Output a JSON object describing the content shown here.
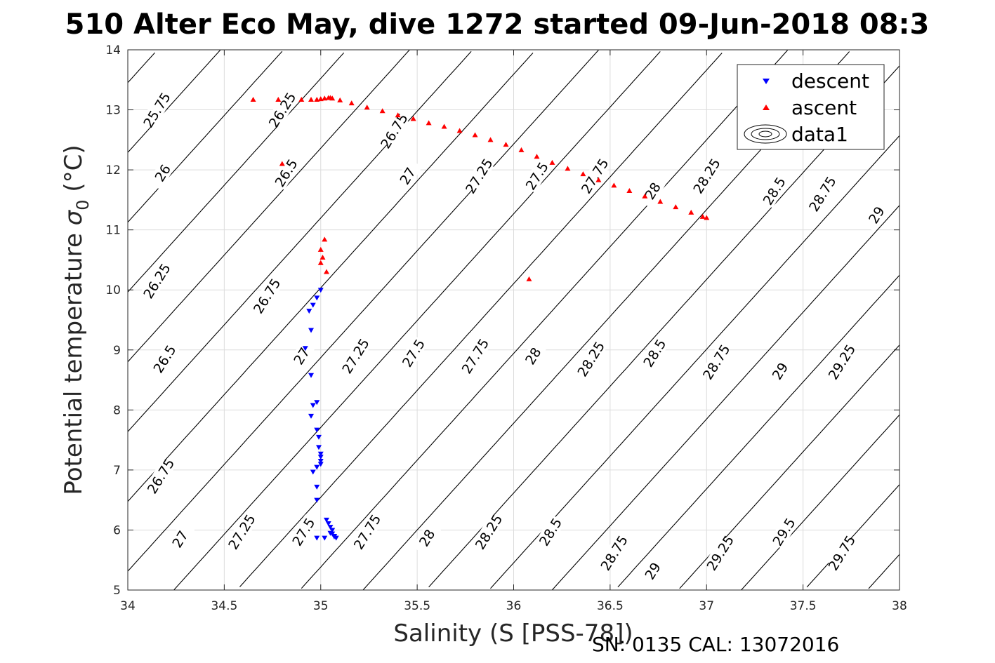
{
  "title": "510 Alter Eco May, dive 1272 started 09-Jun-2018 08:3",
  "footer": "SN: 0135  CAL: 13072016",
  "chart_data": {
    "type": "scatter",
    "title": "510 Alter Eco May, dive 1272 started 09-Jun-2018 08:3",
    "xlabel": "Salinity (S [PSS-78])",
    "ylabel_main": "Potential temperature ",
    "ylabel_sigma": "σ",
    "ylabel_sub": "0",
    "ylabel_unit": " (°C)",
    "xlim": [
      34,
      38
    ],
    "ylim": [
      5,
      14
    ],
    "xticks": [
      34,
      34.5,
      35,
      35.5,
      36,
      36.5,
      37,
      37.5,
      38
    ],
    "xtick_labels": [
      "34",
      "34.5",
      "35",
      "35.5",
      "36",
      "36.5",
      "37",
      "37.5",
      "38"
    ],
    "yticks": [
      5,
      6,
      7,
      8,
      9,
      10,
      11,
      12,
      13,
      14
    ],
    "ytick_labels": [
      "5",
      "6",
      "7",
      "8",
      "9",
      "10",
      "11",
      "12",
      "13",
      "14"
    ],
    "grid": true,
    "legend": {
      "placement": "top-right",
      "entries": [
        "descent",
        "ascent",
        "data1"
      ]
    },
    "series": [
      {
        "name": "descent",
        "marker": "triangle-down",
        "color": "#0000ff",
        "points": [
          [
            35.0,
            10.0
          ],
          [
            34.98,
            9.87
          ],
          [
            34.96,
            9.75
          ],
          [
            34.94,
            9.65
          ],
          [
            34.95,
            9.33
          ],
          [
            34.92,
            9.03
          ],
          [
            34.95,
            8.58
          ],
          [
            34.98,
            8.13
          ],
          [
            34.96,
            8.08
          ],
          [
            34.95,
            7.9
          ],
          [
            34.98,
            7.67
          ],
          [
            34.99,
            7.55
          ],
          [
            34.99,
            7.38
          ],
          [
            35.0,
            7.27
          ],
          [
            35.0,
            7.22
          ],
          [
            35.0,
            7.15
          ],
          [
            35.0,
            7.1
          ],
          [
            34.98,
            7.05
          ],
          [
            34.96,
            6.97
          ],
          [
            34.98,
            6.72
          ],
          [
            34.98,
            6.5
          ],
          [
            35.03,
            6.17
          ],
          [
            35.04,
            6.11
          ],
          [
            35.05,
            6.05
          ],
          [
            35.06,
            6.0
          ],
          [
            35.06,
            5.94
          ],
          [
            35.07,
            5.89
          ],
          [
            35.08,
            5.87
          ],
          [
            35.02,
            5.87
          ],
          [
            34.98,
            5.87
          ],
          [
            35.05,
            5.95
          ],
          [
            35.07,
            5.9
          ]
        ]
      },
      {
        "name": "ascent",
        "marker": "triangle-up",
        "color": "#ff0000",
        "points": [
          [
            34.65,
            13.17
          ],
          [
            34.78,
            13.17
          ],
          [
            34.9,
            13.17
          ],
          [
            34.95,
            13.17
          ],
          [
            34.98,
            13.17
          ],
          [
            35.0,
            13.18
          ],
          [
            35.02,
            13.19
          ],
          [
            35.04,
            13.2
          ],
          [
            35.05,
            13.2
          ],
          [
            35.06,
            13.19
          ],
          [
            35.1,
            13.16
          ],
          [
            35.16,
            13.11
          ],
          [
            35.24,
            13.04
          ],
          [
            35.32,
            12.98
          ],
          [
            35.4,
            12.91
          ],
          [
            35.48,
            12.85
          ],
          [
            35.56,
            12.78
          ],
          [
            35.64,
            12.72
          ],
          [
            35.72,
            12.65
          ],
          [
            35.8,
            12.58
          ],
          [
            35.88,
            12.5
          ],
          [
            35.96,
            12.42
          ],
          [
            36.04,
            12.33
          ],
          [
            36.12,
            12.22
          ],
          [
            36.2,
            12.12
          ],
          [
            36.28,
            12.02
          ],
          [
            36.36,
            11.93
          ],
          [
            36.44,
            11.83
          ],
          [
            36.52,
            11.74
          ],
          [
            36.6,
            11.65
          ],
          [
            36.68,
            11.56
          ],
          [
            36.76,
            11.47
          ],
          [
            36.84,
            11.38
          ],
          [
            36.92,
            11.29
          ],
          [
            36.98,
            11.22
          ],
          [
            37.0,
            11.2
          ],
          [
            34.8,
            12.1
          ],
          [
            35.02,
            10.84
          ],
          [
            35.0,
            10.67
          ],
          [
            35.01,
            10.54
          ],
          [
            35.0,
            10.45
          ],
          [
            35.03,
            10.3
          ],
          [
            36.08,
            10.18
          ]
        ]
      }
    ],
    "contour_levels": [
      25.75,
      26,
      26.25,
      26.5,
      26.75,
      27,
      27.25,
      27.5,
      27.75,
      28,
      28.25,
      28.5,
      28.75,
      29,
      29.25,
      29.5,
      29.75
    ],
    "contour_labels": [
      {
        "text": "25.75",
        "x": 34.15,
        "y": 13.0
      },
      {
        "text": "26.25",
        "x": 34.8,
        "y": 13.0
      },
      {
        "text": "26.75",
        "x": 35.38,
        "y": 12.65
      },
      {
        "text": "26",
        "x": 34.18,
        "y": 11.95
      },
      {
        "text": "26.5",
        "x": 34.82,
        "y": 11.95
      },
      {
        "text": "27",
        "x": 35.45,
        "y": 11.9
      },
      {
        "text": "27.25",
        "x": 35.82,
        "y": 11.9
      },
      {
        "text": "27.5",
        "x": 36.12,
        "y": 11.9
      },
      {
        "text": "27.75",
        "x": 36.42,
        "y": 11.9
      },
      {
        "text": "28",
        "x": 36.72,
        "y": 11.65
      },
      {
        "text": "28.25",
        "x": 37.0,
        "y": 11.9
      },
      {
        "text": "28.5",
        "x": 37.35,
        "y": 11.65
      },
      {
        "text": "28.75",
        "x": 37.6,
        "y": 11.6
      },
      {
        "text": "29",
        "x": 37.88,
        "y": 11.25
      },
      {
        "text": "26.25",
        "x": 34.15,
        "y": 10.15
      },
      {
        "text": "26.75",
        "x": 34.72,
        "y": 9.9
      },
      {
        "text": "26.5",
        "x": 34.19,
        "y": 8.85
      },
      {
        "text": "27",
        "x": 34.9,
        "y": 8.9
      },
      {
        "text": "27.25",
        "x": 35.18,
        "y": 8.9
      },
      {
        "text": "27.5",
        "x": 35.48,
        "y": 8.95
      },
      {
        "text": "27.75",
        "x": 35.8,
        "y": 8.9
      },
      {
        "text": "28",
        "x": 36.1,
        "y": 8.9
      },
      {
        "text": "28.25",
        "x": 36.4,
        "y": 8.85
      },
      {
        "text": "28.5",
        "x": 36.73,
        "y": 8.95
      },
      {
        "text": "28.75",
        "x": 37.05,
        "y": 8.8
      },
      {
        "text": "29",
        "x": 37.38,
        "y": 8.65
      },
      {
        "text": "29.25",
        "x": 37.7,
        "y": 8.8
      },
      {
        "text": "26.75",
        "x": 34.17,
        "y": 6.9
      },
      {
        "text": "27",
        "x": 34.27,
        "y": 5.85
      },
      {
        "text": "27.25",
        "x": 34.59,
        "y": 5.97
      },
      {
        "text": "27.5",
        "x": 34.91,
        "y": 5.97
      },
      {
        "text": "27.75",
        "x": 35.24,
        "y": 5.97
      },
      {
        "text": "28",
        "x": 35.55,
        "y": 5.87
      },
      {
        "text": "28.25",
        "x": 35.87,
        "y": 5.97
      },
      {
        "text": "28.5",
        "x": 36.19,
        "y": 5.97
      },
      {
        "text": "28.75",
        "x": 36.52,
        "y": 5.62
      },
      {
        "text": "29",
        "x": 36.72,
        "y": 5.32
      },
      {
        "text": "29.25",
        "x": 37.07,
        "y": 5.62
      },
      {
        "text": "29.5",
        "x": 37.4,
        "y": 5.97
      },
      {
        "text": "29.75",
        "x": 37.7,
        "y": 5.62
      }
    ]
  }
}
